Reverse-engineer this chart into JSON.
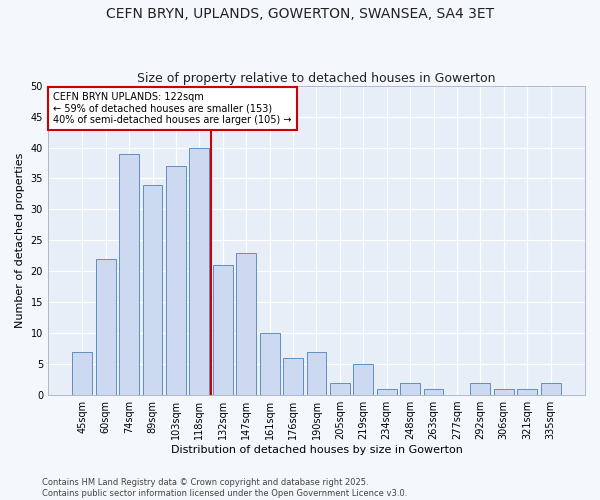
{
  "title": "CEFN BRYN, UPLANDS, GOWERTON, SWANSEA, SA4 3ET",
  "subtitle": "Size of property relative to detached houses in Gowerton",
  "xlabel": "Distribution of detached houses by size in Gowerton",
  "ylabel": "Number of detached properties",
  "categories": [
    "45sqm",
    "60sqm",
    "74sqm",
    "89sqm",
    "103sqm",
    "118sqm",
    "132sqm",
    "147sqm",
    "161sqm",
    "176sqm",
    "190sqm",
    "205sqm",
    "219sqm",
    "234sqm",
    "248sqm",
    "263sqm",
    "277sqm",
    "292sqm",
    "306sqm",
    "321sqm",
    "335sqm"
  ],
  "values": [
    7,
    22,
    39,
    34,
    37,
    40,
    21,
    23,
    10,
    6,
    7,
    2,
    5,
    1,
    2,
    1,
    0,
    2,
    1,
    1,
    2
  ],
  "bar_color": "#ccd9f0",
  "bar_edge_color": "#6090c0",
  "reference_line_x": 5.5,
  "annotation_text": "CEFN BRYN UPLANDS: 122sqm\n← 59% of detached houses are smaller (153)\n40% of semi-detached houses are larger (105) →",
  "annotation_box_color": "#ffffff",
  "annotation_box_edge_color": "#cc0000",
  "vline_color": "#cc0000",
  "ylim": [
    0,
    50
  ],
  "yticks": [
    0,
    5,
    10,
    15,
    20,
    25,
    30,
    35,
    40,
    45,
    50
  ],
  "bg_color": "#e8eef8",
  "grid_color": "#ffffff",
  "footnote": "Contains HM Land Registry data © Crown copyright and database right 2025.\nContains public sector information licensed under the Open Government Licence v3.0.",
  "title_fontsize": 10,
  "subtitle_fontsize": 9,
  "tick_fontsize": 7,
  "ylabel_fontsize": 8,
  "xlabel_fontsize": 8,
  "annotation_fontsize": 7,
  "footnote_fontsize": 6
}
